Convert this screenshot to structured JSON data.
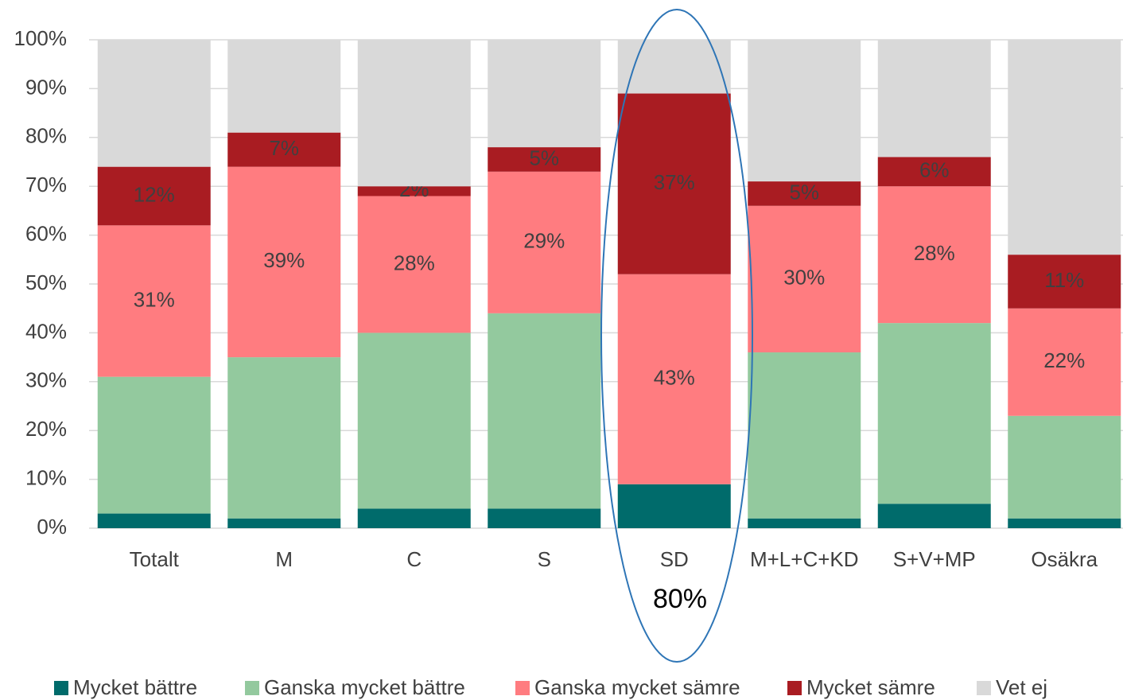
{
  "chart_data": {
    "type": "stacked_bar",
    "categories": [
      "Totalt",
      "M",
      "C",
      "S",
      "SD",
      "M+L+C+KD",
      "S+V+MP",
      "Osäkra"
    ],
    "series": [
      {
        "name": "Mycket bättre",
        "color": "#006b6b",
        "values": [
          3,
          2,
          4,
          4,
          9,
          2,
          5,
          2
        ]
      },
      {
        "name": "Ganska mycket bättre",
        "color": "#93c99e",
        "values": [
          28,
          33,
          36,
          40,
          0,
          34,
          37,
          21
        ]
      },
      {
        "name": "Ganska mycket sämre",
        "color": "#ff7c80",
        "values": [
          31,
          39,
          28,
          29,
          43,
          30,
          28,
          22
        ],
        "value_labels": [
          "31%",
          "39%",
          "28%",
          "29%",
          "43%",
          "30%",
          "28%",
          "22%"
        ]
      },
      {
        "name": "Mycket sämre",
        "color": "#a91c22",
        "values": [
          12,
          7,
          2,
          5,
          37,
          5,
          6,
          11
        ],
        "value_labels": [
          "12%",
          "7%",
          "2%",
          "5%",
          "37%",
          "5%",
          "6%",
          "11%"
        ]
      },
      {
        "name": "Vet ej",
        "color": "#d9d9d9",
        "values": [
          26,
          19,
          30,
          22,
          11,
          29,
          24,
          44
        ]
      }
    ],
    "ylim": [
      0,
      100
    ],
    "yticks": [
      {
        "value": 0,
        "label": "0%"
      },
      {
        "value": 10,
        "label": "10%"
      },
      {
        "value": 20,
        "label": "20%"
      },
      {
        "value": 30,
        "label": "30%"
      },
      {
        "value": 40,
        "label": "40%"
      },
      {
        "value": 50,
        "label": "50%"
      },
      {
        "value": 60,
        "label": "60%"
      },
      {
        "value": 70,
        "label": "70%"
      },
      {
        "value": 80,
        "label": "80%"
      },
      {
        "value": 90,
        "label": "90%"
      },
      {
        "value": 100,
        "label": "100%"
      }
    ],
    "grid": true,
    "legend": "bottom",
    "annotation": "80%"
  }
}
